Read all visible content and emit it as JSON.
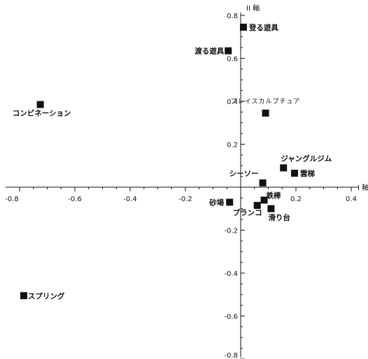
{
  "chart_data": {
    "type": "scatter",
    "title": "",
    "xlabel": "I 軸",
    "ylabel": "II 軸",
    "xlim": [
      -0.8,
      0.4
    ],
    "ylim": [
      -0.8,
      0.8
    ],
    "x_ticks": [
      "-0.8",
      "-0.6",
      "-0.4",
      "-0.2",
      "0.2",
      "0.4"
    ],
    "y_ticks": [
      "0.8",
      "0.6",
      "0.4",
      "0.2",
      "-0.2",
      "-0.4",
      "-0.6",
      "-0.8"
    ],
    "grid": false,
    "marker": "square",
    "marker_color": "#111111",
    "points": [
      {
        "label": "登る遊具",
        "x": 0.01,
        "y": 0.745
      },
      {
        "label": "渡る遊具",
        "x": -0.045,
        "y": 0.635
      },
      {
        "label": "プレイスカルプチュア",
        "x": 0.09,
        "y": 0.345
      },
      {
        "label": "コンビネーション",
        "x": -0.725,
        "y": 0.385
      },
      {
        "label": "ジャングルジム",
        "x": 0.155,
        "y": 0.09
      },
      {
        "label": "雲梯",
        "x": 0.195,
        "y": 0.065
      },
      {
        "label": "シーソー",
        "x": 0.08,
        "y": 0.02
      },
      {
        "label": "砂場",
        "x": -0.04,
        "y": -0.07
      },
      {
        "label": "鉄棒",
        "x": 0.085,
        "y": -0.06
      },
      {
        "label": "ブランコ",
        "x": 0.06,
        "y": -0.085
      },
      {
        "label": "滑り台",
        "x": 0.11,
        "y": -0.1
      },
      {
        "label": "スプリング",
        "x": -0.785,
        "y": -0.505
      }
    ]
  }
}
